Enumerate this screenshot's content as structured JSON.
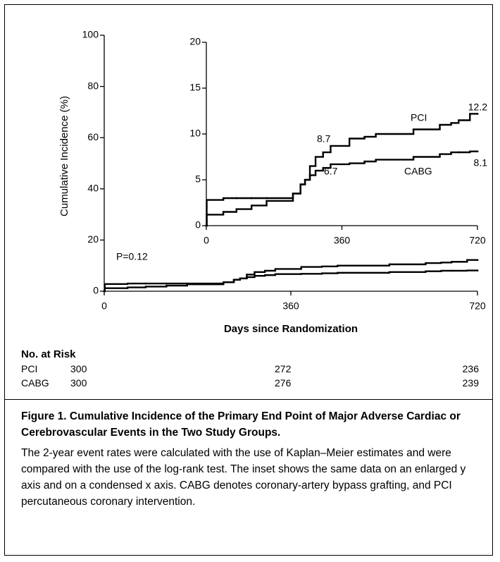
{
  "chart_data": [
    {
      "type": "step",
      "y_label": "Cumulative Incidence (%)",
      "x_label": "Days since Randomization",
      "xlim": [
        0,
        720
      ],
      "ylim": [
        0,
        100
      ],
      "xticks": [
        0,
        360,
        720
      ],
      "yticks": [
        0,
        20,
        40,
        60,
        80,
        100
      ],
      "x": [
        0,
        1,
        45,
        80,
        120,
        160,
        230,
        250,
        262,
        275,
        290,
        310,
        330,
        380,
        420,
        450,
        550,
        620,
        650,
        670,
        700,
        720
      ],
      "series": [
        {
          "name": "PCI",
          "color": "#000000",
          "values": [
            0,
            1.2,
            1.5,
            1.8,
            2.2,
            2.7,
            3.5,
            4.5,
            5,
            6.5,
            7.5,
            8,
            8.7,
            9.5,
            9.7,
            10,
            10.5,
            11,
            11.2,
            11.5,
            12.2,
            12.2
          ]
        },
        {
          "name": "CABG",
          "color": "#000000",
          "values": [
            0,
            2.8,
            3,
            3,
            3,
            3,
            3.5,
            4.5,
            5,
            5.5,
            6,
            6.3,
            6.7,
            6.8,
            7,
            7.2,
            7.5,
            7.8,
            8,
            8,
            8.1,
            8.1
          ]
        }
      ],
      "annotations": [
        "P=0.12"
      ]
    },
    {
      "type": "step",
      "xlim": [
        0,
        720
      ],
      "ylim": [
        0,
        20
      ],
      "xticks": [
        0,
        360,
        720
      ],
      "yticks": [
        0,
        5,
        10,
        15,
        20
      ],
      "x": [
        0,
        1,
        45,
        80,
        120,
        160,
        230,
        250,
        262,
        275,
        290,
        310,
        330,
        380,
        420,
        450,
        550,
        620,
        650,
        670,
        700,
        720
      ],
      "series": [
        {
          "name": "PCI",
          "color": "#000000",
          "values": [
            0,
            1.2,
            1.5,
            1.8,
            2.2,
            2.7,
            3.5,
            4.5,
            5,
            6.5,
            7.5,
            8,
            8.7,
            9.5,
            9.7,
            10,
            10.5,
            11,
            11.2,
            11.5,
            12.2,
            12.2
          ]
        },
        {
          "name": "CABG",
          "color": "#000000",
          "values": [
            0,
            2.8,
            3,
            3,
            3,
            3,
            3.5,
            4.5,
            5,
            5.5,
            6,
            6.3,
            6.7,
            6.8,
            7,
            7.2,
            7.5,
            7.8,
            8,
            8,
            8.1,
            8.1
          ]
        }
      ],
      "annotations": [
        "PCI",
        "12.2",
        "8.7",
        "CABG",
        "8.1",
        "6.7"
      ]
    }
  ],
  "risk_table": {
    "title": "No. at Risk",
    "rows": [
      [
        "PCI",
        300,
        272,
        236
      ],
      [
        "CABG",
        300,
        276,
        239
      ]
    ]
  },
  "caption": {
    "title": "Figure 1. Cumulative Incidence of the Primary End Point of Major Adverse Cardiac or Cerebrovascular Events in the Two Study Groups.",
    "body": "The 2-year event rates were calculated with the use of Kaplan–Meier estimates and were compared with the use of the log-rank test. The inset shows the same data on an enlarged y axis and on a condensed x axis. CABG denotes coronary-artery bypass grafting, and PCI percutaneous coronary intervention."
  }
}
